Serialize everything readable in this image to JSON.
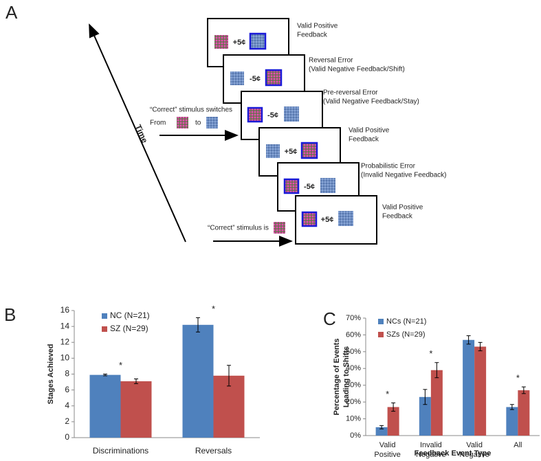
{
  "panel_a": {
    "panel_label": "A",
    "time_label": "Time",
    "switch_text": "“Correct” stimulus switches",
    "from_text": "From",
    "to_text": "to",
    "correct_text": "“Correct” stimulus is",
    "events": [
      {
        "amount": "+5¢",
        "kind": "positive",
        "label": [
          "Valid Positive",
          "Feedback"
        ]
      },
      {
        "amount": "-5¢",
        "kind": "negative",
        "label": [
          "Reversal Error",
          "(Valid Negative Feedback/Shift)"
        ]
      },
      {
        "amount": "-5¢",
        "kind": "negative",
        "label": [
          "Pre-reversal Error",
          "(Valid Negative Feedback/Stay)"
        ]
      },
      {
        "amount": "+5¢",
        "kind": "positive",
        "label": [
          "Valid Positive",
          "Feedback"
        ]
      },
      {
        "amount": "-5¢",
        "kind": "negative",
        "label": [
          "Probabilistic Error",
          "(Invalid Negative Feedback)"
        ]
      },
      {
        "amount": "+5¢",
        "kind": "positive",
        "label": [
          "Valid Positive",
          "Feedback"
        ]
      }
    ]
  },
  "chart_data": [
    {
      "type": "bar",
      "panel_label": "B",
      "y_label": [
        "Stages Achieved"
      ],
      "categories": [
        "Discriminations",
        "Reversals"
      ],
      "annotations": [
        "*",
        "*"
      ],
      "series": [
        {
          "name": "NC (N=21)",
          "color": "#4f81bd",
          "values": [
            7.9,
            14.2
          ],
          "errors": [
            0.1,
            0.9
          ]
        },
        {
          "name": "SZ (N=29)",
          "color": "#c0504d",
          "values": [
            7.1,
            7.8
          ],
          "errors": [
            0.3,
            1.3
          ]
        }
      ],
      "ylim": [
        0,
        16
      ],
      "yticks": [
        0,
        2,
        4,
        6,
        8,
        10,
        12,
        14,
        16
      ]
    },
    {
      "type": "bar",
      "panel_label": "C",
      "y_label": [
        "Percentage of Events",
        "Leading to Shifts"
      ],
      "x_label": "Feedback Event Type",
      "categories": [
        "Valid Positive",
        "Invalid Negative",
        "Valid Negative",
        "All"
      ],
      "annotations": [
        "*",
        "*",
        null,
        "*"
      ],
      "series": [
        {
          "name": "NCs (N=21)",
          "color": "#4f81bd",
          "values": [
            5,
            23,
            57,
            17
          ],
          "errors": [
            1,
            4.5,
            2.5,
            1.5
          ]
        },
        {
          "name": "SZs (N=29)",
          "color": "#c0504d",
          "values": [
            17,
            39,
            53,
            27
          ],
          "errors": [
            2.5,
            4.5,
            2.5,
            2
          ]
        }
      ],
      "ylim": [
        0,
        70
      ],
      "yticks": [
        {
          "value": 0,
          "label": "0%"
        },
        {
          "value": 10,
          "label": "10%"
        },
        {
          "value": 20,
          "label": "20%"
        },
        {
          "value": 30,
          "label": "30%"
        },
        {
          "value": 40,
          "label": "40%"
        },
        {
          "value": 50,
          "label": "50%"
        },
        {
          "value": 60,
          "label": "60%"
        },
        {
          "value": 70,
          "label": "70%"
        }
      ]
    }
  ]
}
